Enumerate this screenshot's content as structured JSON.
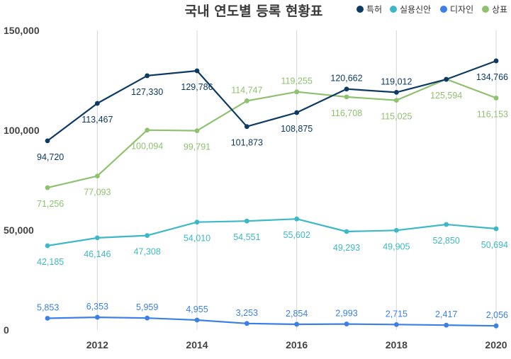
{
  "chart_data": {
    "type": "line",
    "title": "국내 연도별 등록 현황표",
    "xlabel": "",
    "ylabel": "",
    "x": [
      2011,
      2012,
      2013,
      2014,
      2015,
      2016,
      2017,
      2018,
      2019,
      2020
    ],
    "x_tick_labels": [
      "2012",
      "2014",
      "2016",
      "2018",
      "2020"
    ],
    "x_tick_values": [
      2012,
      2014,
      2016,
      2018,
      2020
    ],
    "ylim": [
      0,
      150000
    ],
    "y_tick_values": [
      0,
      50000,
      100000,
      150000
    ],
    "y_tick_labels": [
      "0",
      "50,000",
      "100,000",
      "150,000"
    ],
    "grid": "vertical",
    "legend_position": "top-right",
    "series": [
      {
        "name": "특허",
        "color": "#0d3a63",
        "values": [
          94720,
          113467,
          127330,
          129786,
          101873,
          108875,
          120662,
          119012,
          125500,
          134766
        ],
        "labels": [
          "94,720",
          "113,467",
          "127,330",
          "129,786",
          "101,873",
          "108,875",
          "120,662",
          "119,012",
          "",
          "134,766"
        ]
      },
      {
        "name": "실용신안",
        "color": "#3db8c6",
        "values": [
          42185,
          46146,
          47308,
          54010,
          54551,
          55602,
          49293,
          49905,
          52850,
          50694
        ],
        "labels": [
          "42,185",
          "46,146",
          "47,308",
          "54,010",
          "54,551",
          "55,602",
          "49,293",
          "49,905",
          "52,850",
          "50,694"
        ]
      },
      {
        "name": "디자인",
        "color": "#3b7fe8",
        "values": [
          5853,
          6353,
          5959,
          4955,
          3253,
          2854,
          2993,
          2715,
          2417,
          2056
        ],
        "labels": [
          "5,853",
          "6,353",
          "5,959",
          "4,955",
          "3,253",
          "2,854",
          "2,993",
          "2,715",
          "2,417",
          "2,056"
        ]
      },
      {
        "name": "상표",
        "color": "#8fc26f",
        "values": [
          71256,
          77093,
          100094,
          99791,
          114747,
          119255,
          116708,
          115025,
          125594,
          116153
        ],
        "labels": [
          "71,256",
          "77,093",
          "100,094",
          "99,791",
          "114,747",
          "119,255",
          "116,708",
          "115,025",
          "125,594",
          "116,153"
        ]
      }
    ]
  }
}
